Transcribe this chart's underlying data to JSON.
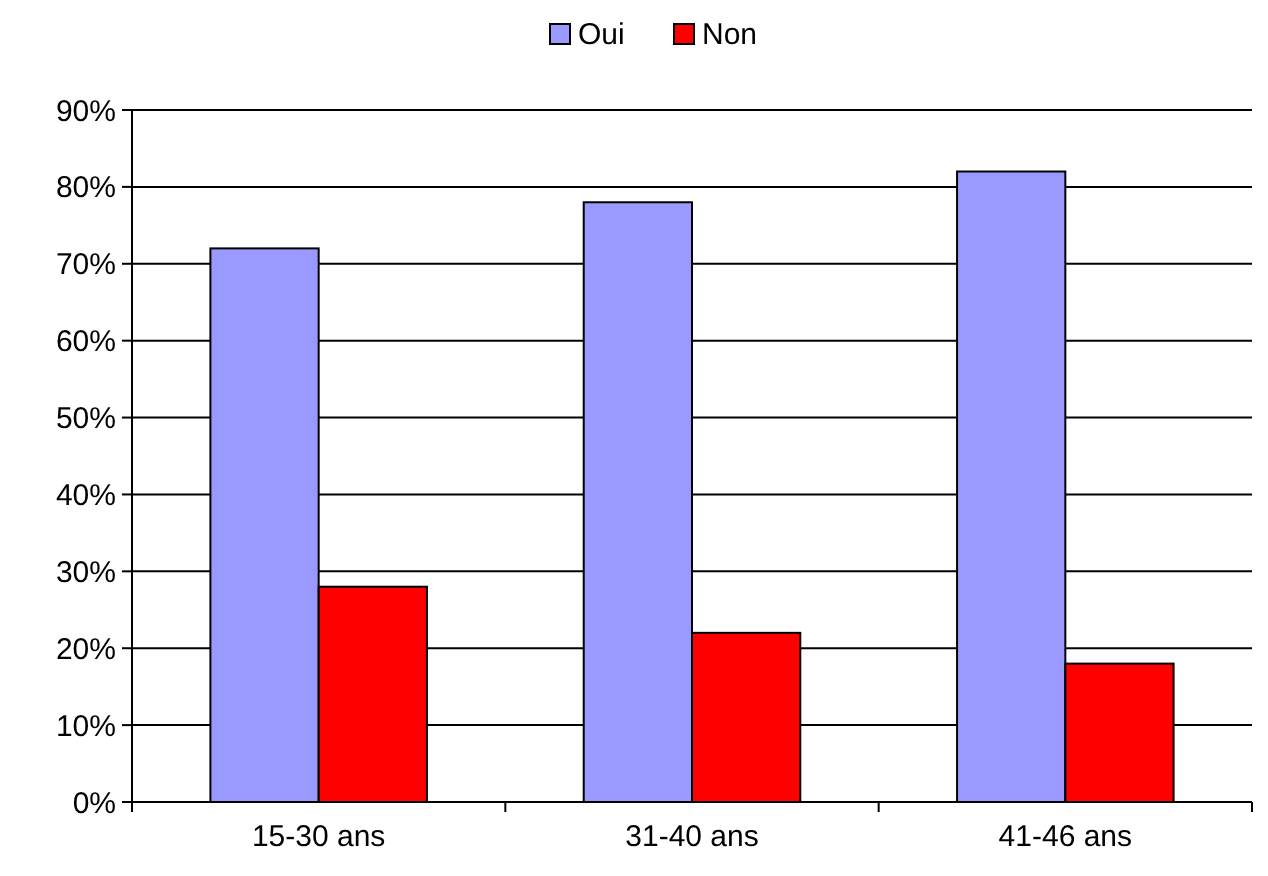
{
  "chart_data": {
    "type": "bar",
    "categories": [
      "15-30 ans",
      "31-40 ans",
      "41-46 ans"
    ],
    "series": [
      {
        "name": "Oui",
        "color": "#9999ff",
        "values": [
          72,
          78,
          82
        ]
      },
      {
        "name": "Non",
        "color": "#ff0000",
        "values": [
          28,
          22,
          18
        ]
      }
    ],
    "ylim": [
      0,
      90
    ],
    "yticks": [
      {
        "value": 0,
        "label": "0%"
      },
      {
        "value": 10,
        "label": "10%"
      },
      {
        "value": 20,
        "label": "20%"
      },
      {
        "value": 30,
        "label": "30%"
      },
      {
        "value": 40,
        "label": "40%"
      },
      {
        "value": 50,
        "label": "50%"
      },
      {
        "value": 60,
        "label": "60%"
      },
      {
        "value": 70,
        "label": "70%"
      },
      {
        "value": 80,
        "label": "80%"
      },
      {
        "value": 90,
        "label": "90%"
      }
    ],
    "grid": "y",
    "legend": "top"
  }
}
